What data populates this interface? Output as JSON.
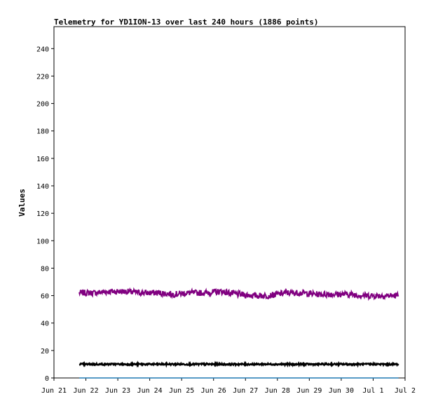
{
  "chart_data": {
    "type": "line",
    "title": "Telemetry for YD1ION-13 over last 240 hours (1886 points)",
    "xlabel": "",
    "ylabel": "Values",
    "x_ticks": [
      "Jun 21",
      "Jun 22",
      "Jun 23",
      "Jun 24",
      "Jun 25",
      "Jun 26",
      "Jun 27",
      "Jun 28",
      "Jun 29",
      "Jun 30",
      "Jul 1",
      "Jul 2"
    ],
    "y_ticks": [
      0,
      20,
      40,
      60,
      80,
      100,
      120,
      140,
      160,
      180,
      200,
      220,
      240
    ],
    "xlim": [
      "Jun 21",
      "Jul 2"
    ],
    "ylim": [
      0,
      256
    ],
    "grid": false,
    "series": [
      {
        "color": "#800080",
        "x": [
          "Jun 21 19:00",
          "Jun 22 06:00",
          "Jun 22 18:00",
          "Jun 23 06:00",
          "Jun 23 18:00",
          "Jun 24 06:00",
          "Jun 24 18:00",
          "Jun 25 06:00",
          "Jun 25 18:00",
          "Jun 26 06:00",
          "Jun 26 18:00",
          "Jun 27 06:00",
          "Jun 27 18:00",
          "Jun 28 06:00",
          "Jun 28 18:00",
          "Jun 29 06:00",
          "Jun 29 18:00",
          "Jun 30 06:00",
          "Jun 30 18:00",
          "Jul 1 06:00",
          "Jul 1 19:00"
        ],
        "values": [
          62,
          62,
          63,
          63,
          62,
          62,
          61,
          62,
          62,
          63,
          61,
          60,
          60,
          62,
          62,
          61,
          61,
          61,
          60,
          60,
          60
        ]
      },
      {
        "color": "#000000",
        "x": [
          "Jun 21 19:00",
          "Jul 1 19:00"
        ],
        "values": [
          10,
          10
        ]
      },
      {
        "color": "#1e78b4",
        "x": [
          "Jun 21 19:00",
          "Jul 1 19:00"
        ],
        "values": [
          0,
          0
        ]
      }
    ]
  }
}
